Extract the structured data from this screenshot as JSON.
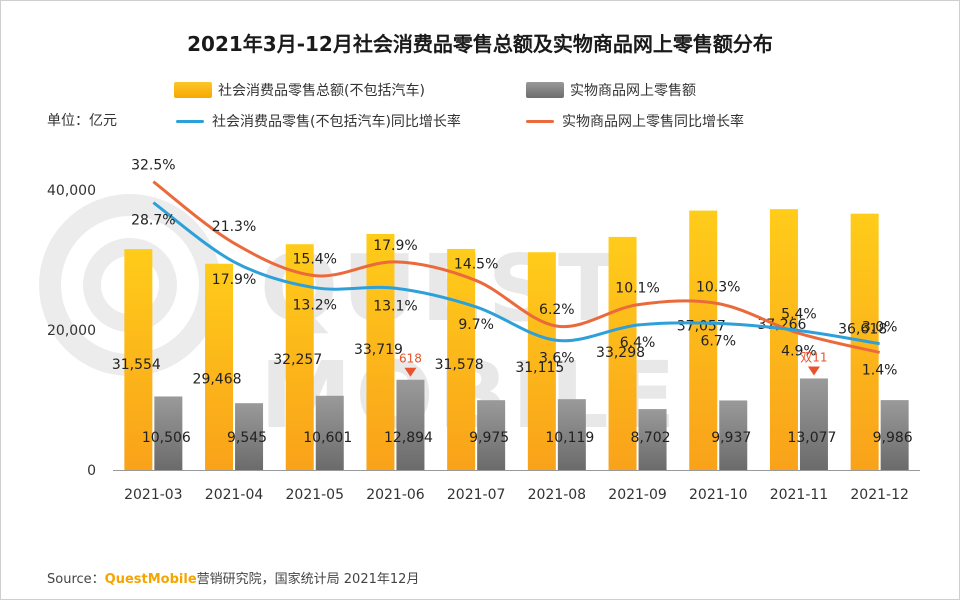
{
  "title": "2021年3月-12月社会消费品零售总额及实物商品网上零售额分布",
  "unit_label": "单位：亿元",
  "watermark": "QUEST MOBILE",
  "source": {
    "prefix": "Source：",
    "brand": "QuestMobile",
    "suffix": "营销研究院，国家统计局 2021年12月"
  },
  "colors": {
    "bar_total": "#fbb80f",
    "bar_online": "#7f7f7f",
    "line_total": "#2ea0d9",
    "line_online": "#ea6a3b",
    "marker": "#e8532e"
  },
  "chart_data": {
    "type": "bar",
    "categories": [
      "2021-03",
      "2021-04",
      "2021-05",
      "2021-06",
      "2021-07",
      "2021-08",
      "2021-09",
      "2021-10",
      "2021-11",
      "2021-12"
    ],
    "ylim": [
      0,
      40000
    ],
    "yticks": [
      "0",
      "20,000",
      "40,000"
    ],
    "series": [
      {
        "name": "社会消费品零售总额(不包括汽车)",
        "type": "bar",
        "values": [
          31554,
          29468,
          32257,
          33719,
          31578,
          31115,
          33298,
          37057,
          37266,
          36618
        ],
        "labels": [
          "31,554",
          "29,468",
          "32,257",
          "33,719",
          "31,578",
          "31,115",
          "33,298",
          "37,057",
          "37,266",
          "36,618"
        ]
      },
      {
        "name": "实物商品网上零售额",
        "type": "bar",
        "values": [
          10506,
          9545,
          10601,
          12894,
          9975,
          10119,
          8702,
          9937,
          13077,
          9986
        ],
        "labels": [
          "10,506",
          "9,545",
          "10,601",
          "12,894",
          "9,975",
          "10,119",
          "8,702",
          "9,937",
          "13,077",
          "9,986"
        ]
      },
      {
        "name": "社会消费品零售(不包括汽车)同比增长率",
        "type": "line",
        "axis": "secondary",
        "values": [
          28.7,
          17.9,
          13.2,
          13.1,
          9.7,
          3.6,
          6.4,
          6.7,
          5.4,
          3.0
        ],
        "labels": [
          "28.7%",
          "17.9%",
          "13.2%",
          "13.1%",
          "9.7%",
          "3.6%",
          "6.4%",
          "6.7%",
          "5.4%",
          "3.0%"
        ]
      },
      {
        "name": "实物商品网上零售同比增长率",
        "type": "line",
        "axis": "secondary",
        "values": [
          32.5,
          21.3,
          15.4,
          17.9,
          14.5,
          6.2,
          10.1,
          10.3,
          4.9,
          1.4
        ],
        "labels": [
          "32.5%",
          "21.3%",
          "15.4%",
          "17.9%",
          "14.5%",
          "6.2%",
          "10.1%",
          "10.3%",
          "4.9%",
          "1.4%"
        ]
      }
    ],
    "annotations": [
      {
        "category": "2021-06",
        "text": "618"
      },
      {
        "category": "2021-11",
        "text": "双11"
      }
    ]
  }
}
